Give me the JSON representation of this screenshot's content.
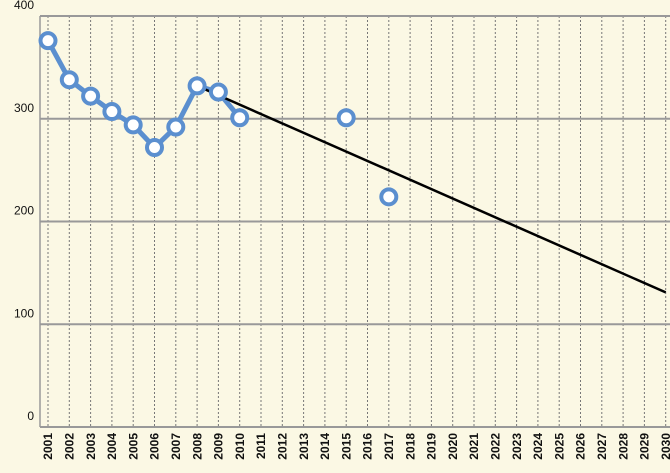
{
  "chart_data": {
    "type": "line",
    "categories": [
      "2001",
      "2002",
      "2003",
      "2004",
      "2005",
      "2006",
      "2007",
      "2008",
      "2009",
      "2010",
      "2011",
      "2012",
      "2013",
      "2014",
      "2015",
      "2016",
      "2017",
      "2018",
      "2019",
      "2020",
      "2021",
      "2022",
      "2023",
      "2024",
      "2025",
      "2026",
      "2027",
      "2028",
      "2029",
      "2030"
    ],
    "series": [
      {
        "color": "#5b8fcf",
        "values": [
          376,
          338,
          322,
          307,
          294,
          272,
          292,
          332,
          326,
          301,
          null,
          null,
          null,
          null,
          301,
          null,
          224,
          null,
          null,
          null,
          null,
          null,
          null,
          null,
          null,
          null,
          null,
          null,
          null,
          null
        ]
      }
    ],
    "trend": {
      "categories": [
        "2008",
        "2030"
      ],
      "values": [
        332,
        131
      ],
      "color": "#000000"
    },
    "ylim": [
      0,
      400
    ],
    "yticks": [
      0,
      100,
      200,
      300,
      400
    ],
    "grid": true
  }
}
